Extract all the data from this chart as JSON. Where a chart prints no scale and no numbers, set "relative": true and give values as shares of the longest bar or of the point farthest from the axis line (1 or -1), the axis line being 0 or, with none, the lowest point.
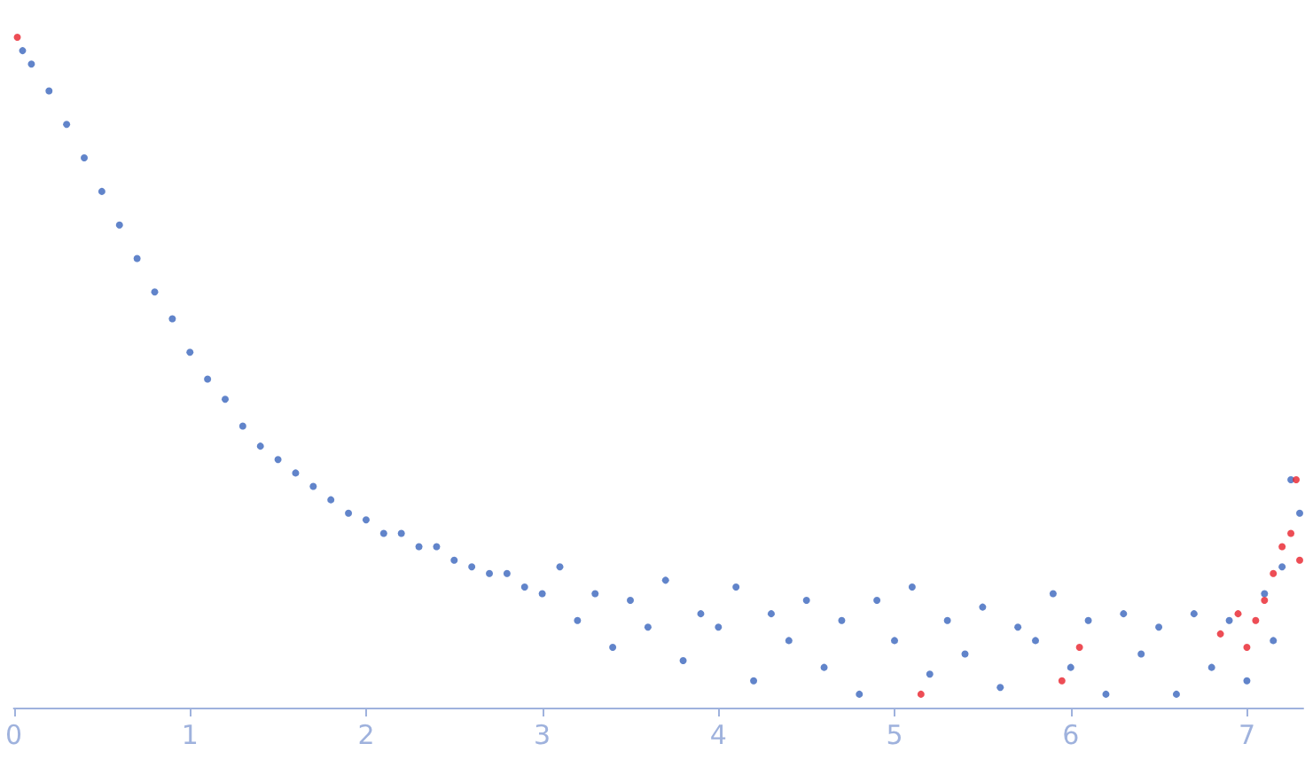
{
  "chart_data": {
    "type": "scatter",
    "relative": true,
    "marker": "circle",
    "tick_labels": "x",
    "xlim": [
      0,
      7.32
    ],
    "xticks": [
      0,
      1,
      2,
      3,
      4,
      5,
      6,
      7
    ],
    "series": [
      {
        "color": "#3a65bd",
        "x": [
          0.05,
          0.1,
          0.2,
          0.3,
          0.4,
          0.5,
          0.6,
          0.7,
          0.8,
          0.9,
          1.0,
          1.1,
          1.2,
          1.3,
          1.4,
          1.5,
          1.6,
          1.7,
          1.8,
          1.9,
          2.0,
          2.1,
          2.2,
          2.3,
          2.4,
          2.5,
          2.6,
          2.7,
          2.8,
          2.9,
          3.0,
          3.1,
          3.2,
          3.3,
          3.4,
          3.5,
          3.6,
          3.7,
          3.8,
          3.9,
          4.0,
          4.1,
          4.2,
          4.3,
          4.4,
          4.5,
          4.6,
          4.7,
          4.8,
          4.9,
          5.0,
          5.1,
          5.2,
          5.3,
          5.4,
          5.5,
          5.6,
          5.7,
          5.8,
          5.9,
          6.0,
          6.1,
          6.2,
          6.3,
          6.4,
          6.5,
          6.6,
          6.7,
          6.8,
          6.9,
          7.0,
          7.1,
          7.15,
          7.2,
          7.25,
          7.3
        ],
        "values": [
          0.98,
          0.96,
          0.92,
          0.87,
          0.82,
          0.77,
          0.72,
          0.67,
          0.62,
          0.58,
          0.53,
          0.49,
          0.46,
          0.42,
          0.39,
          0.37,
          0.35,
          0.33,
          0.31,
          0.29,
          0.28,
          0.26,
          0.26,
          0.24,
          0.24,
          0.22,
          0.21,
          0.2,
          0.2,
          0.18,
          0.17,
          0.21,
          0.13,
          0.17,
          0.09,
          0.16,
          0.12,
          0.19,
          0.07,
          0.14,
          0.12,
          0.18,
          0.04,
          0.14,
          0.1,
          0.16,
          0.06,
          0.13,
          0.02,
          0.16,
          0.1,
          0.18,
          0.05,
          0.13,
          0.08,
          0.15,
          0.03,
          0.12,
          0.1,
          0.17,
          0.06,
          0.13,
          0.02,
          0.14,
          0.08,
          0.12,
          0.02,
          0.14,
          0.06,
          0.13,
          0.04,
          0.17,
          0.1,
          0.21,
          0.34,
          0.29
        ],
        "marker": "circle"
      },
      {
        "color": "#e8202a",
        "x": [
          0.02,
          5.15,
          5.95,
          6.05,
          6.85,
          6.95,
          7.0,
          7.05,
          7.1,
          7.15,
          7.2,
          7.25,
          7.28,
          7.3
        ],
        "values": [
          1.0,
          0.02,
          0.04,
          0.09,
          0.11,
          0.14,
          0.09,
          0.13,
          0.16,
          0.2,
          0.24,
          0.26,
          0.34,
          0.22
        ]
      }
    ]
  }
}
